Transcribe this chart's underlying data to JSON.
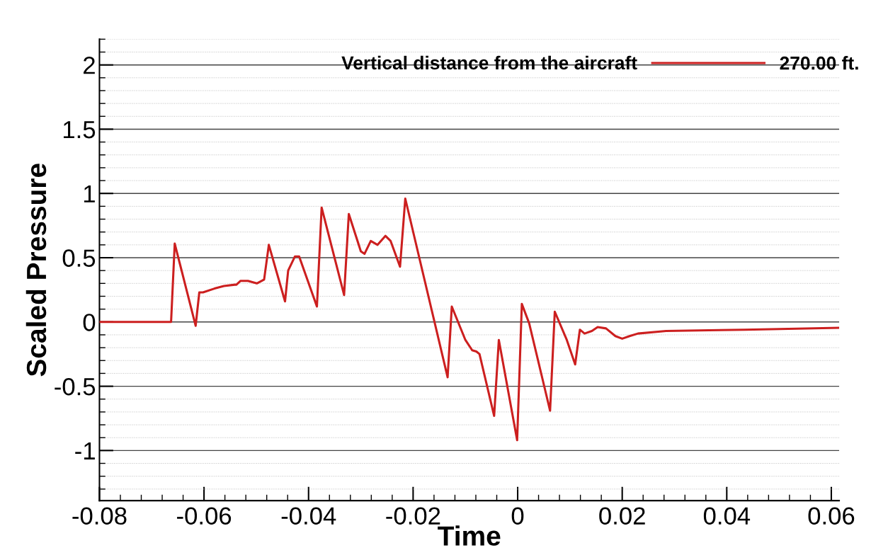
{
  "chart_data": {
    "type": "line",
    "xlabel": "Time",
    "ylabel": "Scaled Pressure",
    "legend_title": "Vertical distance from the aircraft",
    "xlim": [
      -0.08,
      0.0615
    ],
    "xticks": [
      -0.08,
      -0.06,
      -0.04,
      -0.02,
      0,
      0.02,
      0.04,
      0.06
    ],
    "ylim": [
      -1.39,
      2.2
    ],
    "yticks": [
      -1,
      -0.5,
      0,
      0.5,
      1,
      1.5,
      2
    ],
    "grid": "y",
    "legend": "top right",
    "marker": "none",
    "line_style": "solid",
    "series": [
      {
        "name": "270.00 ft.",
        "color": "#cc1f1f",
        "x": [
          -0.08,
          -0.0663,
          -0.0656,
          -0.0616,
          -0.0609,
          -0.0602,
          -0.058,
          -0.0562,
          -0.0541,
          -0.0538,
          -0.053,
          -0.0516,
          -0.0499,
          -0.0485,
          -0.0476,
          -0.0445,
          -0.0439,
          -0.0426,
          -0.0418,
          -0.0384,
          -0.0375,
          -0.0332,
          -0.0323,
          -0.03,
          -0.0293,
          -0.0281,
          -0.0268,
          -0.0253,
          -0.0243,
          -0.0225,
          -0.0215,
          -0.0134,
          -0.0126,
          -0.01,
          -0.0087,
          -0.0079,
          -0.0073,
          -0.0045,
          -0.0036,
          -0.0001,
          0.0008,
          0.0022,
          0.0062,
          0.0071,
          0.0094,
          0.011,
          0.0119,
          0.0128,
          0.0142,
          0.0153,
          0.0169,
          0.0187,
          0.02,
          0.0214,
          0.023,
          0.0284,
          0.0366,
          0.0434,
          0.0501,
          0.0615
        ],
        "values": [
          0,
          0,
          0.61,
          -0.03,
          0.23,
          0.23,
          0.26,
          0.28,
          0.29,
          0.29,
          0.32,
          0.32,
          0.3,
          0.33,
          0.6,
          0.16,
          0.4,
          0.51,
          0.51,
          0.12,
          0.89,
          0.21,
          0.84,
          0.55,
          0.53,
          0.63,
          0.6,
          0.67,
          0.63,
          0.43,
          0.96,
          -0.43,
          0.12,
          -0.14,
          -0.22,
          -0.23,
          -0.25,
          -0.73,
          -0.14,
          -0.92,
          0.14,
          -0.01,
          -0.69,
          0.08,
          -0.14,
          -0.33,
          -0.06,
          -0.09,
          -0.07,
          -0.04,
          -0.05,
          -0.11,
          -0.13,
          -0.11,
          -0.09,
          -0.07,
          -0.065,
          -0.06,
          -0.055,
          -0.045
        ]
      }
    ]
  }
}
